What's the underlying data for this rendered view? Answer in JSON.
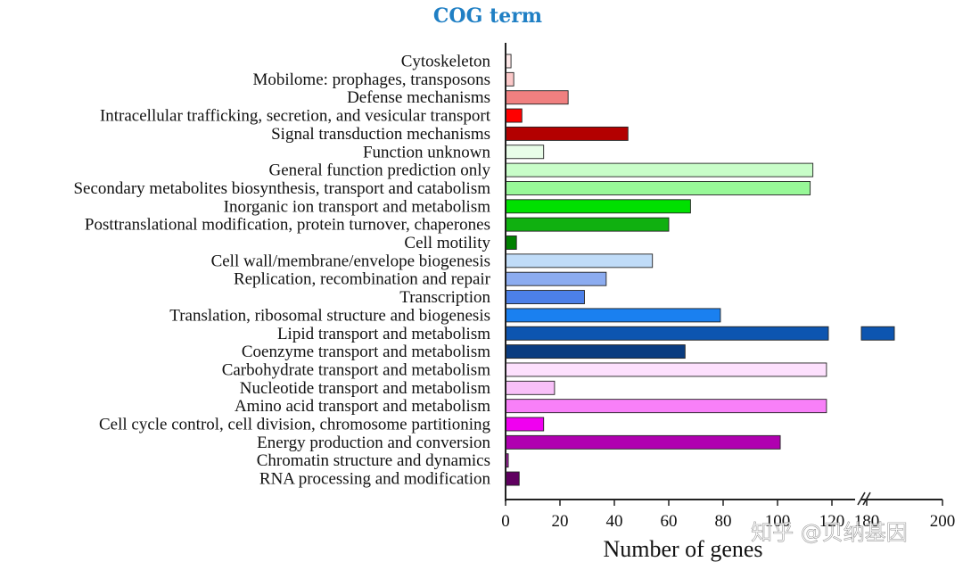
{
  "chart_data": {
    "type": "bar",
    "orientation": "horizontal",
    "title": "COG term",
    "xlabel": "Number of genes",
    "ylabel": "",
    "axis_break": {
      "at": 120,
      "resume": 180
    },
    "xlim": [
      0,
      200
    ],
    "x_ticks": [
      "0",
      "20",
      "40",
      "60",
      "80",
      "100",
      "120",
      "180",
      "200"
    ],
    "grid": false,
    "legend": "none",
    "categories": [
      "Cytoskeleton",
      "Mobilome: prophages, transposons",
      "Defense mechanisms",
      "Intracellular trafficking, secretion, and vesicular transport",
      "Signal transduction mechanisms",
      "Function unknown",
      "General function prediction only",
      "Secondary metabolites biosynthesis, transport and catabolism",
      "Inorganic ion transport and metabolism",
      "Posttranslational modification, protein turnover, chaperones",
      "Cell motility",
      "Cell wall/membrane/envelope biogenesis",
      "Replication, recombination and repair",
      "Transcription",
      "Translation, ribosomal structure and biogenesis",
      "Lipid transport and metabolism",
      "Coenzyme transport and metabolism",
      "Carbohydrate transport and metabolism",
      "Nucleotide transport and metabolism",
      "Amino acid transport and metabolism",
      "Cell cycle control, cell division, chromosome partitioning",
      "Energy production and conversion",
      "Chromatin structure and dynamics",
      "RNA processing and modification"
    ],
    "values": [
      2,
      3,
      23,
      6,
      45,
      14,
      113,
      112,
      68,
      60,
      4,
      54,
      37,
      29,
      79,
      200,
      66,
      118,
      18,
      118,
      14,
      101,
      1,
      5
    ],
    "colors": [
      "#fde8e8",
      "#fbc8c8",
      "#f08080",
      "#ff0000",
      "#b30000",
      "#e8fde8",
      "#c8fdc8",
      "#98f898",
      "#00e000",
      "#10b010",
      "#008000",
      "#c0dcf8",
      "#8cacf0",
      "#4c80e8",
      "#1a80f0",
      "#0d55b0",
      "#0a3c80",
      "#fde0fd",
      "#f8c0f8",
      "#f880f8",
      "#f000f0",
      "#b000b0",
      "#a020a0",
      "#600060"
    ]
  },
  "watermark": "知乎 @贝纳基因"
}
